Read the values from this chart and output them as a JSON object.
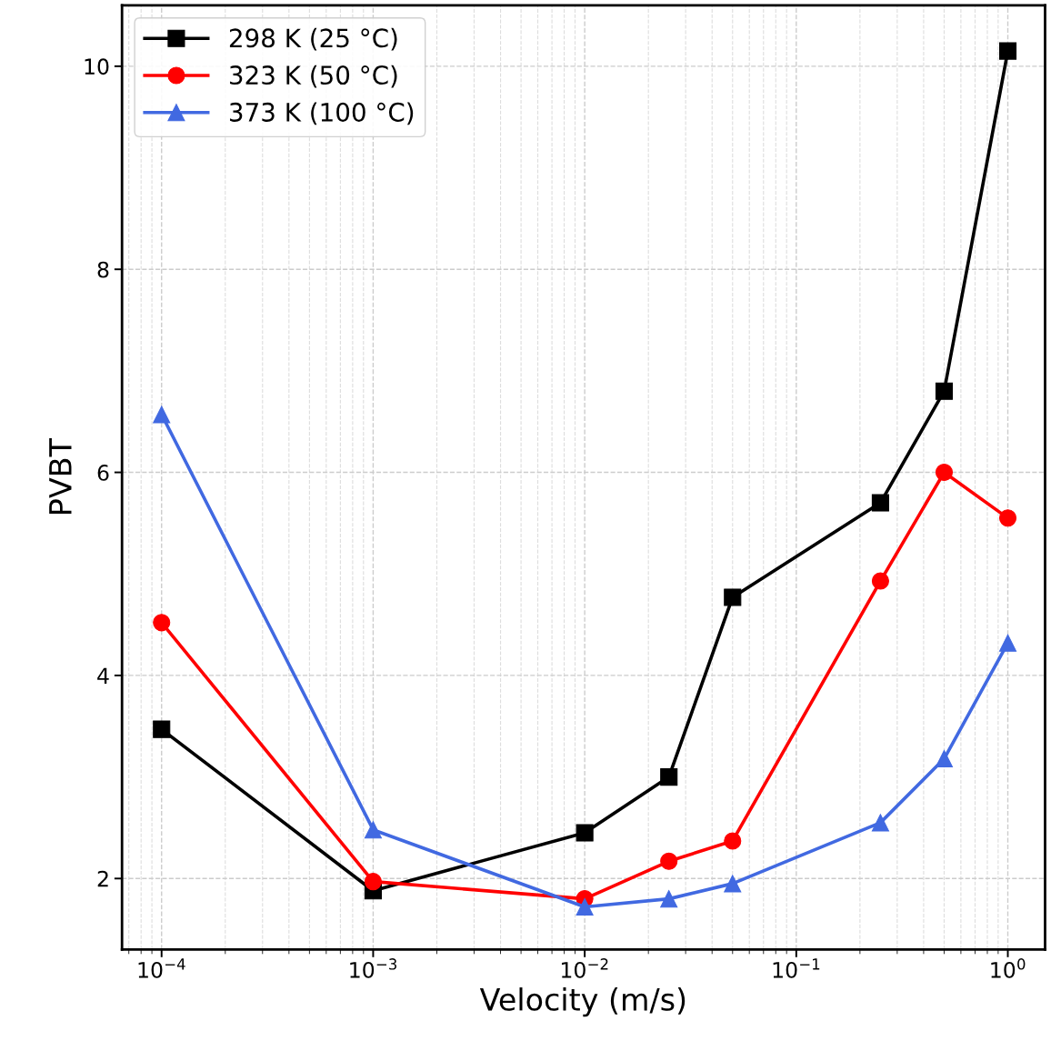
{
  "chart_data": {
    "type": "line",
    "xlabel": "Velocity (m/s)",
    "ylabel": "PVBT",
    "log": "x",
    "x": [
      0.0001,
      0.001,
      0.01,
      0.025,
      0.05,
      0.25,
      0.5,
      1
    ],
    "series": [
      {
        "name": "298 K (25 °C)",
        "color": "#000000",
        "marker": "square",
        "values": [
          3.47,
          1.88,
          2.45,
          3.0,
          4.77,
          5.7,
          6.8,
          10.15
        ]
      },
      {
        "name": "323 K (50 °C)",
        "color": "#ff0000",
        "marker": "circle",
        "values": [
          4.52,
          1.97,
          1.8,
          2.17,
          2.37,
          4.93,
          6.0,
          5.55
        ]
      },
      {
        "name": "373 K (100 °C)",
        "color": "#4169e1",
        "marker": "triangle",
        "values": [
          6.57,
          2.48,
          1.72,
          1.8,
          1.95,
          2.55,
          3.18,
          4.32
        ]
      }
    ],
    "xlim": [
      6.5e-05,
      1.5
    ],
    "xticks": [
      {
        "value": 0.0001,
        "label": "10$^{−4}$"
      },
      {
        "value": 0.001,
        "label": "10$^{−3}$"
      },
      {
        "value": 0.01,
        "label": "10$^{−2}$"
      },
      {
        "value": 0.1,
        "label": "10$^{−1}$"
      },
      {
        "value": 1,
        "label": "10$^{0}$"
      }
    ],
    "ylim": [
      1.3,
      10.6
    ],
    "yticks": [
      2,
      4,
      6,
      8,
      10
    ],
    "grid": true,
    "legend": "top left",
    "line_style": "solid"
  }
}
